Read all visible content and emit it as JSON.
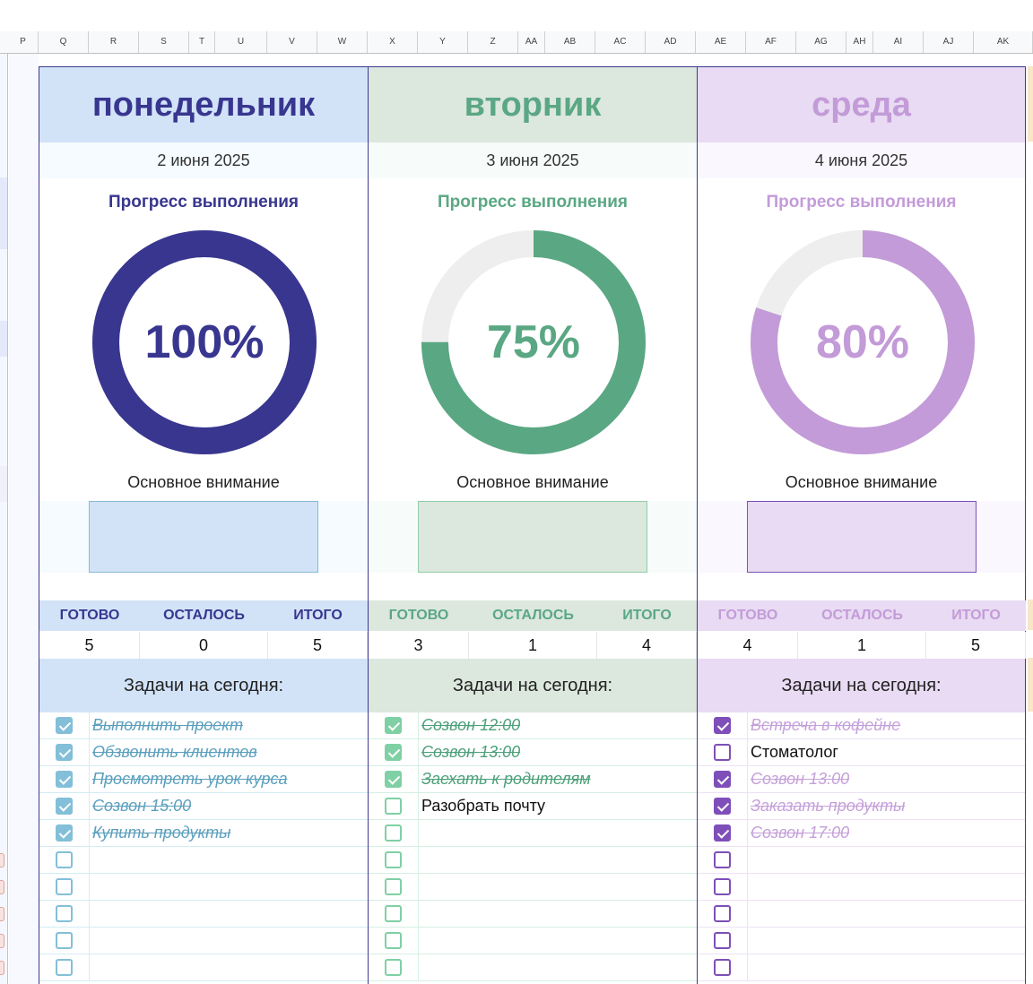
{
  "column_headers": [
    "P",
    "Q",
    "R",
    "S",
    "T",
    "U",
    "V",
    "W",
    "X",
    "Y",
    "Z",
    "AA",
    "AB",
    "AC",
    "AD",
    "AE",
    "AF",
    "AG",
    "AH",
    "AI",
    "AJ",
    "AK"
  ],
  "labels": {
    "progress_title": "Прогресс выполнения",
    "focus_label": "Основное внимание",
    "done_label": "ГОТОВО",
    "left_label": "ОСТАЛОСЬ",
    "total_label": "ИТОГО",
    "tasks_label": "Задачи на сегодня:"
  },
  "days": [
    {
      "name": "понедельник",
      "date": "2 июня 2025",
      "progress_text": "100%",
      "progress_value": 1.0,
      "done": "5",
      "left": "0",
      "total": "5",
      "colors": {
        "accent": "#38368f",
        "header_bg": "#d2e3f8",
        "checkbox": "#83bfd8",
        "done_text": "#5b9fbd"
      },
      "tasks": [
        {
          "text": "Выполнить проект",
          "checked": true
        },
        {
          "text": "Обзвонить клиентов",
          "checked": true
        },
        {
          "text": "Просмотреть урок курса",
          "checked": true
        },
        {
          "text": "Созвон 15:00",
          "checked": true
        },
        {
          "text": "Купить продукты",
          "checked": true
        },
        {
          "text": "",
          "checked": false
        },
        {
          "text": "",
          "checked": false
        },
        {
          "text": "",
          "checked": false
        },
        {
          "text": "",
          "checked": false
        },
        {
          "text": "",
          "checked": false
        }
      ]
    },
    {
      "name": "вторник",
      "date": "3 июня 2025",
      "progress_text": "75%",
      "progress_value": 0.75,
      "done": "3",
      "left": "1",
      "total": "4",
      "colors": {
        "accent": "#5aa783",
        "header_bg": "#dce7de",
        "checkbox": "#7fd0a4",
        "done_text": "#4ca07a"
      },
      "tasks": [
        {
          "text": "Созвон 12:00",
          "checked": true
        },
        {
          "text": "Созвон 13:00",
          "checked": true
        },
        {
          "text": "Заехать к родителям",
          "checked": true
        },
        {
          "text": "Разобрать почту",
          "checked": false
        },
        {
          "text": "",
          "checked": false
        },
        {
          "text": "",
          "checked": false
        },
        {
          "text": "",
          "checked": false
        },
        {
          "text": "",
          "checked": false
        },
        {
          "text": "",
          "checked": false
        },
        {
          "text": "",
          "checked": false
        }
      ]
    },
    {
      "name": "среда",
      "date": "4 июня 2025",
      "progress_text": "80%",
      "progress_value": 0.8,
      "done": "4",
      "left": "1",
      "total": "5",
      "colors": {
        "accent": "#c39bd8",
        "header_bg": "#e8dbf3",
        "checkbox": "#7e4fb8",
        "done_text": "#c5a0da"
      },
      "tasks": [
        {
          "text": "Встреча в кофейне",
          "checked": true
        },
        {
          "text": "Стоматолог",
          "checked": false
        },
        {
          "text": "Созвон 13:00",
          "checked": true
        },
        {
          "text": "Заказать продукты",
          "checked": true
        },
        {
          "text": "Созвон 17:00",
          "checked": true
        },
        {
          "text": "",
          "checked": false
        },
        {
          "text": "",
          "checked": false
        },
        {
          "text": "",
          "checked": false
        },
        {
          "text": "",
          "checked": false
        },
        {
          "text": "",
          "checked": false
        }
      ]
    }
  ]
}
